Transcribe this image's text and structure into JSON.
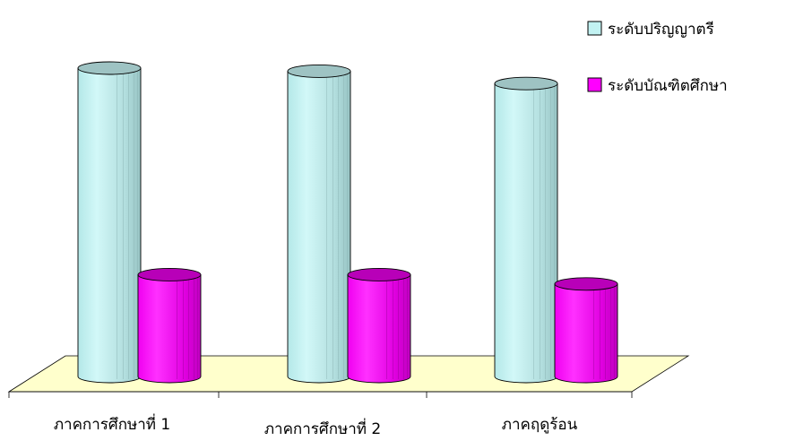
{
  "chart_data": {
    "type": "bar",
    "style": "3d-cylinder",
    "categories": [
      "ภาคการศึกษาที่  1",
      "ภาคการศึกษาที่  2",
      "ภาคฤดูร้อน"
    ],
    "series": [
      {
        "name": "ระดับปริญญาตรี",
        "color": "#C2F2F2",
        "values": [
          100,
          99,
          95
        ]
      },
      {
        "name": "ระดับบัณฑิตศึกษา",
        "color": "#FF00FF",
        "values": [
          33,
          33,
          30
        ]
      }
    ],
    "ylim": [
      0,
      100
    ],
    "grid": false,
    "legend": "top-right",
    "colors": {
      "floor": "#FFFFCC",
      "cap_light": "#9EC3C3",
      "cap_magenta": "#B800B8"
    }
  }
}
